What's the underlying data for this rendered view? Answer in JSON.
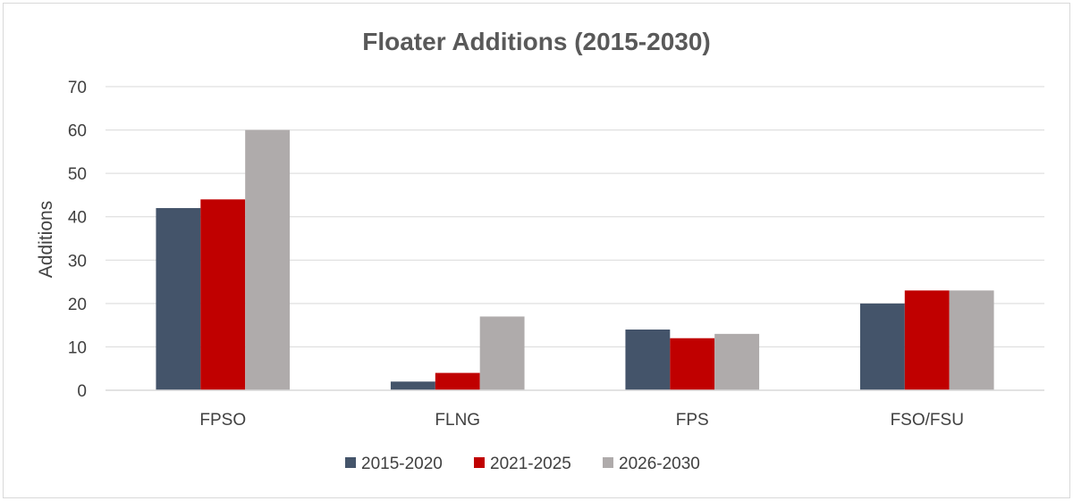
{
  "chart_data": {
    "type": "bar",
    "title": "Floater Additions (2015-2030)",
    "xlabel": "",
    "ylabel": "Additions",
    "ylim": [
      0,
      70
    ],
    "yticks": [
      0,
      10,
      20,
      30,
      40,
      50,
      60,
      70
    ],
    "categories": [
      "FPSO",
      "FLNG",
      "FPS",
      "FSO/FSU"
    ],
    "series": [
      {
        "name": "2015-2020",
        "color": "#44546a",
        "values": [
          42,
          2,
          14,
          20
        ]
      },
      {
        "name": "2021-2025",
        "color": "#c00000",
        "values": [
          44,
          4,
          12,
          23
        ]
      },
      {
        "name": "2026-2030",
        "color": "#afabab",
        "values": [
          60,
          17,
          13,
          23
        ]
      }
    ],
    "grid": true,
    "legend_position": "bottom"
  }
}
